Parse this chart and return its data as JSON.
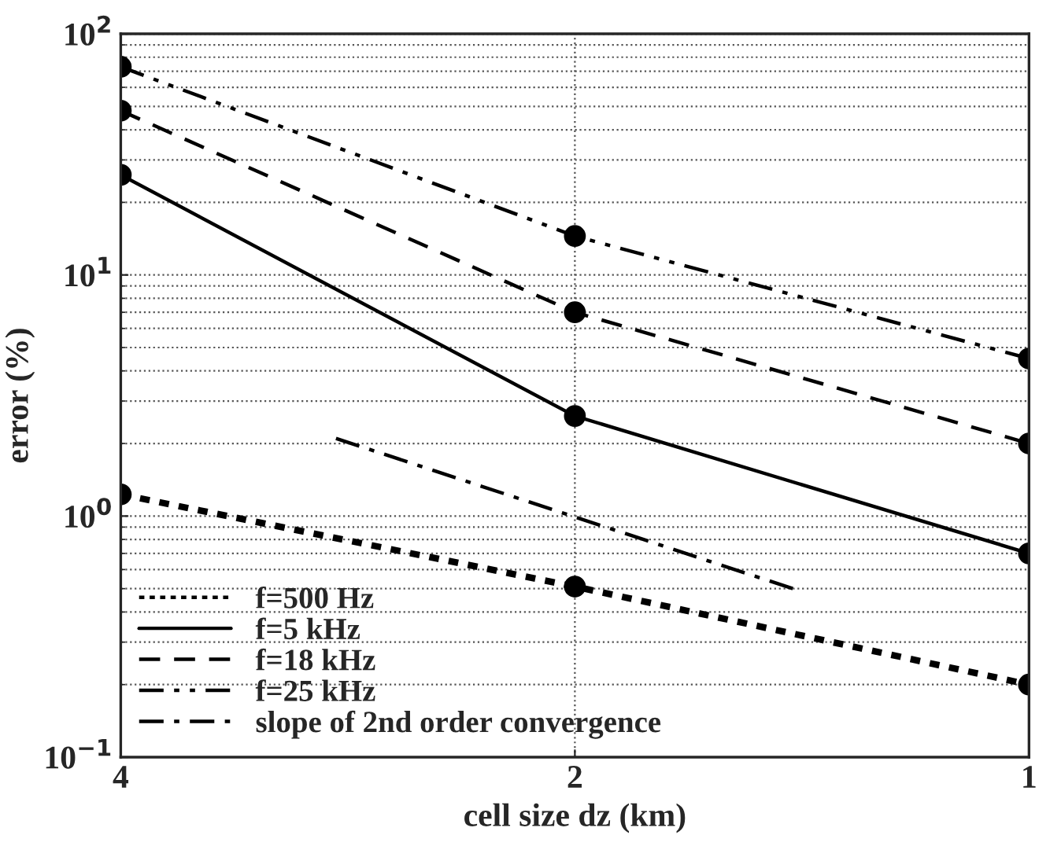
{
  "chart_data": {
    "type": "line",
    "xlabel": "cell size dz (km)",
    "ylabel": "error (%)",
    "log": "xy",
    "xlim": [
      4,
      1
    ],
    "xticks": [
      4,
      2,
      1
    ],
    "ylim": [
      0.1,
      100
    ],
    "yticks": [
      {
        "value": 0.1,
        "label": "10$^{−1}$"
      },
      {
        "value": 1,
        "label": "10$^{0}$"
      },
      {
        "value": 10,
        "label": "10$^{1}$"
      },
      {
        "value": 100,
        "label": "10$^{2}$"
      }
    ],
    "grid": true,
    "legend": "bottom left",
    "series": [
      {
        "name": "f=500 Hz",
        "color": "#000000",
        "x": [
          4,
          2,
          1
        ],
        "values": [
          1.23,
          0.51,
          0.2
        ],
        "line_style": "dotted",
        "marker": "circle"
      },
      {
        "name": "f=5 kHz",
        "color": "#000000",
        "x": [
          4,
          2,
          1
        ],
        "values": [
          26,
          2.6,
          0.7
        ],
        "line_style": "solid",
        "marker": "circle"
      },
      {
        "name": "f=18 kHz",
        "color": "#000000",
        "x": [
          4,
          2,
          1
        ],
        "values": [
          48,
          7,
          2.0
        ],
        "line_style": "dashed",
        "marker": "circle"
      },
      {
        "name": "f=25 kHz",
        "color": "#000000",
        "x": [
          4,
          2,
          1
        ],
        "values": [
          73,
          14.5,
          4.5
        ],
        "line_style": "dashdotdot",
        "marker": "circle"
      },
      {
        "name": "slope of 2nd order convergence",
        "color": "#000000",
        "x": [
          2.88,
          1.42
        ],
        "values": [
          2.1,
          0.49
        ],
        "line_style": "dashdot",
        "marker": "none"
      }
    ]
  }
}
